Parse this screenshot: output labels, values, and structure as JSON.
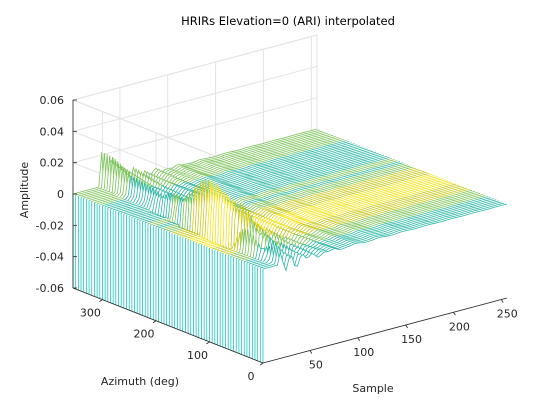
{
  "chart_data": {
    "type": "waterfall-3d",
    "title": "HRIRs Elevation=0 (ARI) interpolated",
    "xlabel": "Sample",
    "ylabel": "Azimuth (deg)",
    "zlabel": "Amplitude",
    "xlim": [
      1,
      256
    ],
    "ylim": [
      0,
      355
    ],
    "zlim": [
      -0.06,
      0.06
    ],
    "xticks": [
      "50",
      "100",
      "150",
      "200",
      "250"
    ],
    "yticks": [
      "0",
      "100",
      "200",
      "300"
    ],
    "zticks": [
      "0.06",
      "0.04",
      "0.02",
      "0",
      "-0.02",
      "-0.04",
      "-0.06"
    ],
    "grid": true,
    "series_description": "One HRIR curve per azimuth; onset near sample 15-25, main peaks up to ~0.04 around samples 20-40 for azimuths 60-180, decaying to 0 by sample ~120",
    "series": [
      {
        "azimuth": 0,
        "peak_sample": 22,
        "peak_amplitude": 0.006
      },
      {
        "azimuth": 30,
        "peak_sample": 21,
        "peak_amplitude": 0.012
      },
      {
        "azimuth": 60,
        "peak_sample": 20,
        "peak_amplitude": 0.022
      },
      {
        "azimuth": 90,
        "peak_sample": 19,
        "peak_amplitude": 0.032
      },
      {
        "azimuth": 120,
        "peak_sample": 20,
        "peak_amplitude": 0.038
      },
      {
        "azimuth": 150,
        "peak_sample": 22,
        "peak_amplitude": 0.03
      },
      {
        "azimuth": 180,
        "peak_sample": 24,
        "peak_amplitude": 0.018
      },
      {
        "azimuth": 210,
        "peak_sample": 27,
        "peak_amplitude": 0.012
      },
      {
        "azimuth": 240,
        "peak_sample": 30,
        "peak_amplitude": 0.009
      },
      {
        "azimuth": 270,
        "peak_sample": 32,
        "peak_amplitude": 0.01
      },
      {
        "azimuth": 300,
        "peak_sample": 33,
        "peak_amplitude": 0.012
      },
      {
        "azimuth": 330,
        "peak_sample": 34,
        "peak_amplitude": 0.02
      },
      {
        "azimuth": 355,
        "peak_sample": 35,
        "peak_amplitude": 0.025
      }
    ],
    "colormap": [
      "#16c7c7",
      "#2fb8a5",
      "#7cc35a",
      "#c8c81f",
      "#f5e21a"
    ]
  }
}
